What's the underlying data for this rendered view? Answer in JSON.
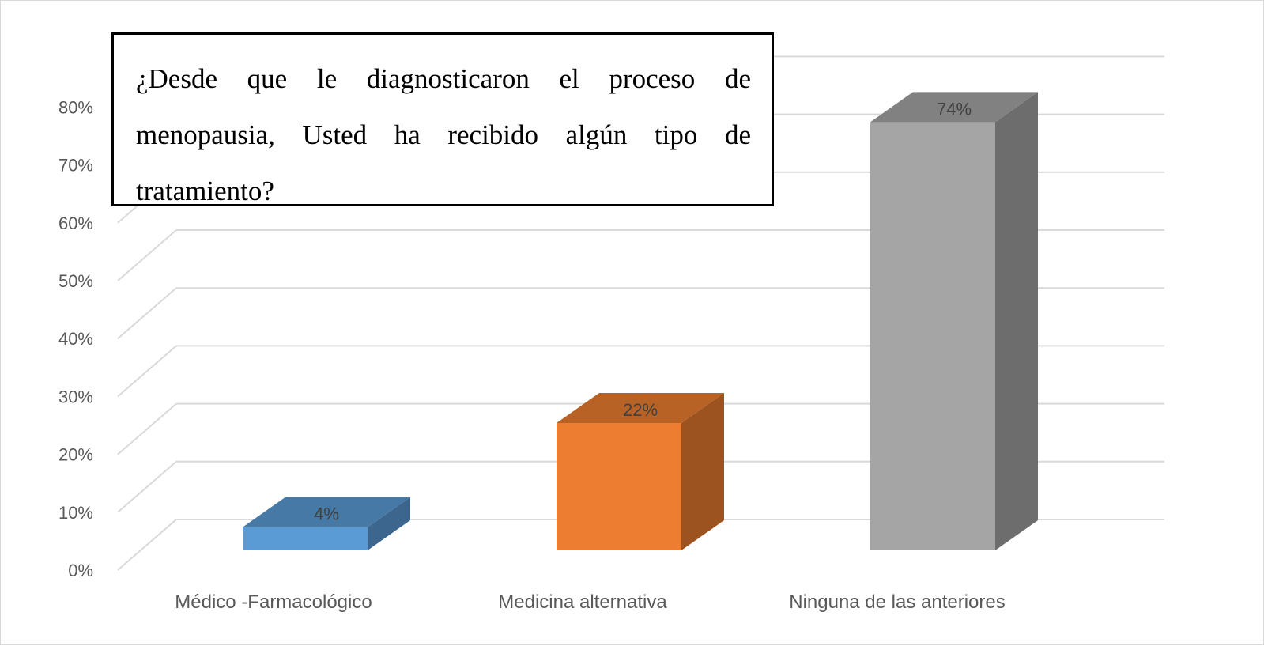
{
  "chart_data": {
    "type": "bar",
    "style": "3d-column",
    "title": "¿Desde que le diagnosticaron el proceso de menopausia, Usted ha recibido algún tipo de tratamiento?",
    "categories": [
      "Médico -Farmacológico",
      "Medicina alternativa",
      "Ninguna de las anteriores"
    ],
    "values": [
      4,
      22,
      74
    ],
    "value_labels": [
      "4%",
      "22%",
      "74%"
    ],
    "y_ticks": [
      "0%",
      "10%",
      "20%",
      "30%",
      "40%",
      "50%",
      "60%",
      "70%",
      "80%"
    ],
    "ylim": [
      0,
      80
    ],
    "grid": true,
    "colors": [
      "#5b9bd5",
      "#ed7d31",
      "#a5a5a5"
    ]
  }
}
